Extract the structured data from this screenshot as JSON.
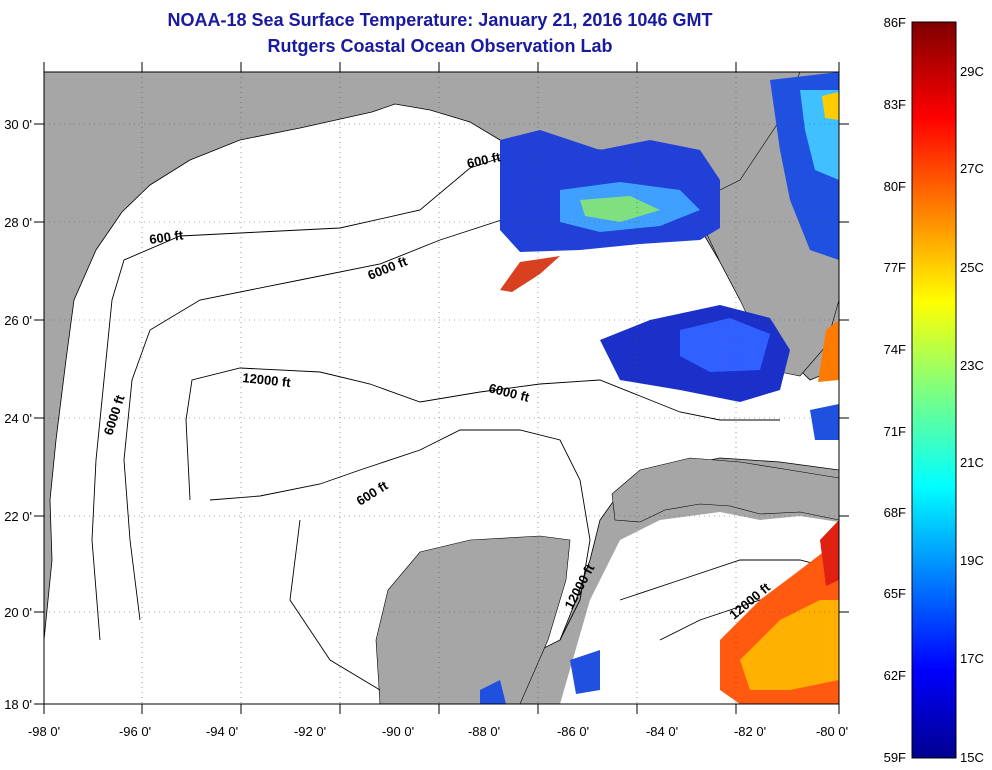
{
  "header": {
    "title": "NOAA-18 Sea Surface Temperature:  January 21, 2016 1046 GMT",
    "subtitle": "Rutgers Coastal Ocean Observation Lab"
  },
  "map": {
    "lon_labels": [
      "-98 0'",
      "-96 0'",
      "-94 0'",
      "-92 0'",
      "-90 0'",
      "-88 0'",
      "-86 0'",
      "-84 0'",
      "-82 0'",
      "-80 0'"
    ],
    "lat_labels": [
      "18 0'",
      "20 0'",
      "22 0'",
      "24 0'",
      "26 0'",
      "28 0'",
      "30 0'"
    ],
    "contour_labels": [
      "600 ft",
      "600 ft",
      "6000 ft",
      "12000 ft",
      "6000 ft",
      "6000 ft",
      "600 ft",
      "12000 ft",
      "12000 ft"
    ],
    "colors": {
      "land": "#a6a6a6",
      "water": "#ffffff",
      "grid": "#555555",
      "contour": "#000000"
    }
  },
  "colorbar": {
    "fahrenheit_labels": [
      "86F",
      "83F",
      "80F",
      "77F",
      "74F",
      "71F",
      "68F",
      "65F",
      "62F",
      "59F"
    ],
    "celsius_labels": [
      "29C",
      "27C",
      "25C",
      "23C",
      "21C",
      "19C",
      "17C",
      "15C"
    ]
  }
}
